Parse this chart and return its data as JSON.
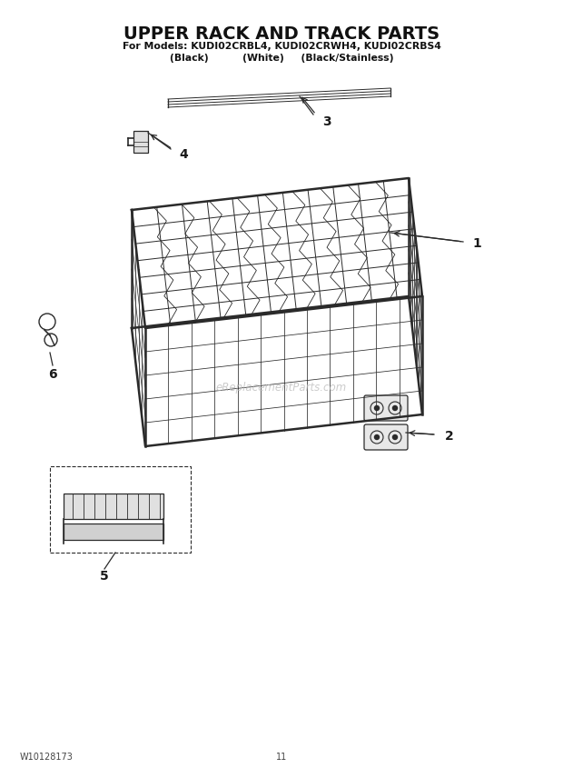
{
  "title_line1": "UPPER RACK AND TRACK PARTS",
  "title_line2": "For Models: KUDI02CRBL4, KUDI02CRWH4, KUDI02CRBS4",
  "title_line3": "(Black)          (White)     (Black/Stainless)",
  "footer_left": "W10128173",
  "footer_center": "11",
  "bg_color": "#ffffff",
  "line_color": "#2a2a2a",
  "label_color": "#1a1a1a",
  "watermark": "eReplacementParts.com",
  "watermark_color": "#bbbbbb"
}
